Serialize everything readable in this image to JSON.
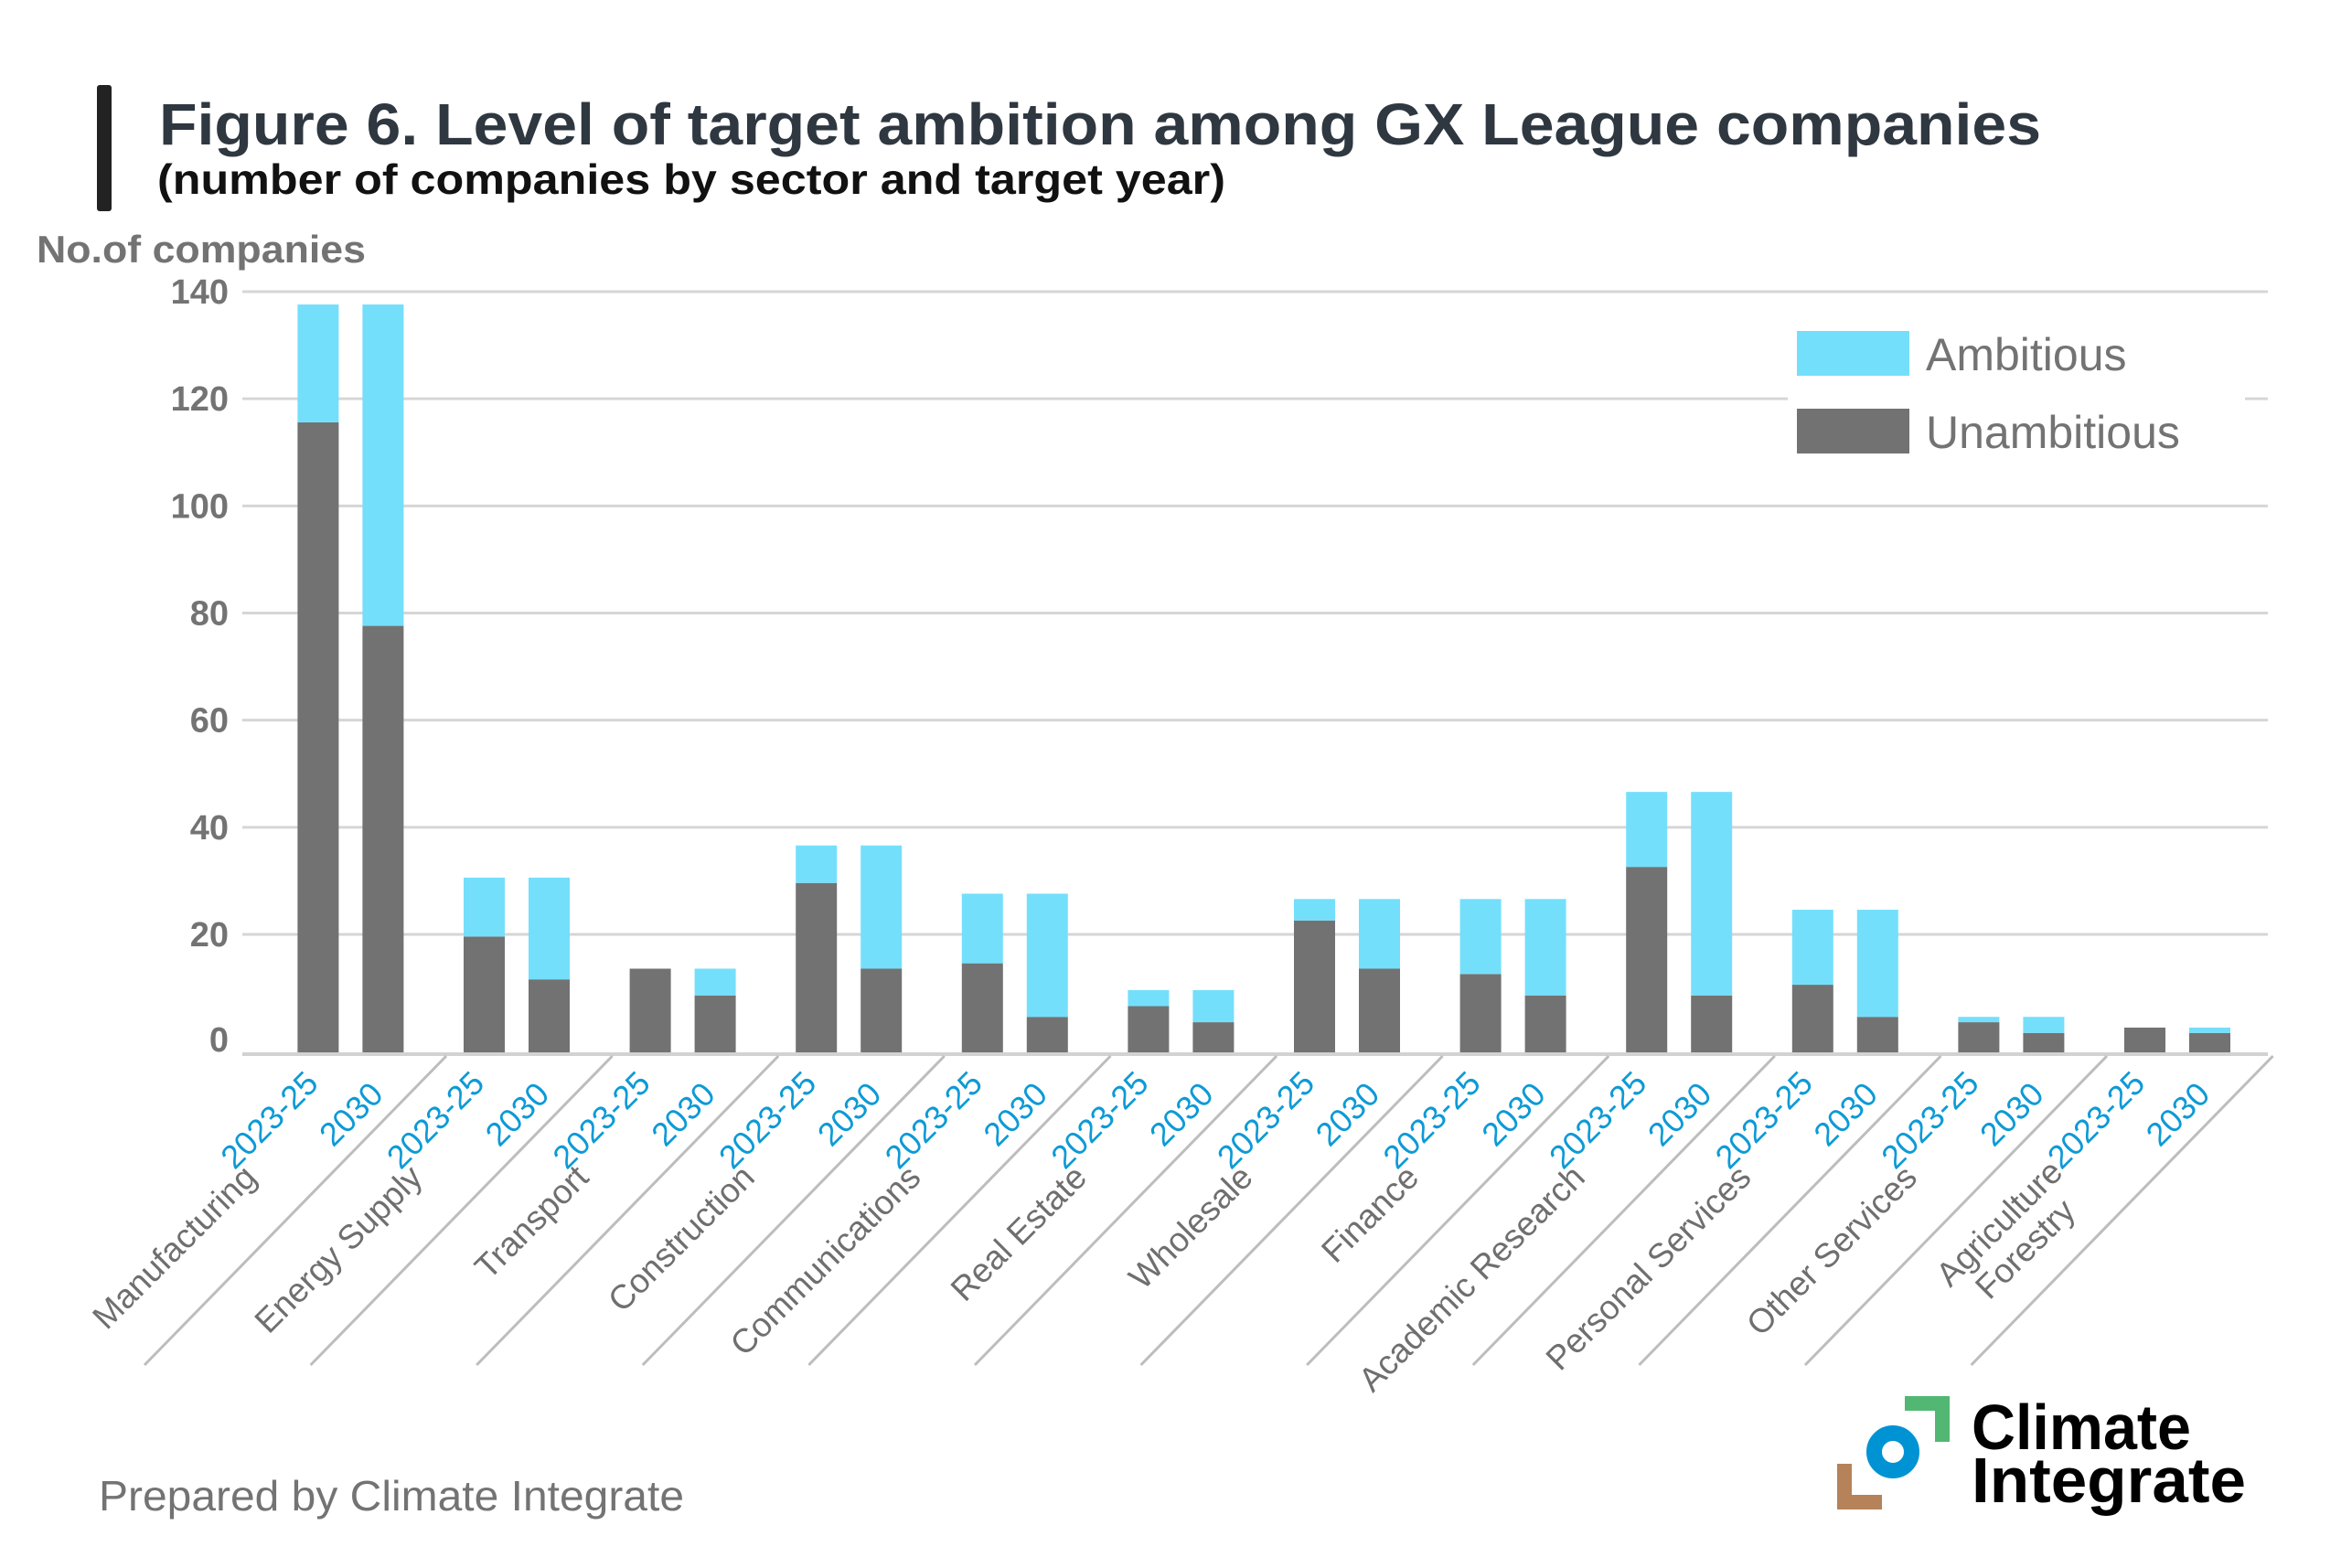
{
  "header": {
    "title": "Figure 6. Level of target ambition among GX League companies",
    "subtitle": "(number of companies by sector and target year)"
  },
  "footer": {
    "credit": "Prepared by Climate Integrate"
  },
  "logo": {
    "line1": "Climate",
    "line2": "Integrate",
    "colors": {
      "green": "#52b772",
      "blue": "#0093d3",
      "brown": "#b5825a"
    }
  },
  "colors": {
    "ambitious": "#74dffb",
    "unambitious": "#727272",
    "year_label": "#0d9ad6",
    "title_bar": "#222222"
  },
  "chart_data": {
    "type": "bar",
    "stacked": true,
    "title": "Figure 6. Level of target ambition among GX League companies",
    "subtitle": "(number of companies by sector and target year)",
    "xlabel": "",
    "ylabel": "No.of companies",
    "ylim": [
      0,
      140
    ],
    "yticks": [
      "0",
      "20",
      "40",
      "60",
      "80",
      "100",
      "120",
      "140"
    ],
    "grid": true,
    "legend": {
      "placement": "top-right",
      "entries": [
        "Ambitious",
        "Unambitious"
      ]
    },
    "sectors": [
      {
        "name": "Manufacturing",
        "lines": [
          "Manufacturing"
        ]
      },
      {
        "name": "Energy Supply",
        "lines": [
          "Energy Supply"
        ]
      },
      {
        "name": "Transport",
        "lines": [
          "Transport"
        ]
      },
      {
        "name": "Construction",
        "lines": [
          "Construction"
        ]
      },
      {
        "name": "Communications",
        "lines": [
          "Communications"
        ]
      },
      {
        "name": "Real Estate",
        "lines": [
          "Real Estate"
        ]
      },
      {
        "name": "Wholesale",
        "lines": [
          "Wholesale"
        ]
      },
      {
        "name": "Finance",
        "lines": [
          "Finance"
        ]
      },
      {
        "name": "Academic Research",
        "lines": [
          "Academic Research"
        ]
      },
      {
        "name": "Personal Services",
        "lines": [
          "Personal Services"
        ]
      },
      {
        "name": "Other Services",
        "lines": [
          "Other Services"
        ]
      },
      {
        "name": "Agriculture Forestry",
        "lines": [
          "Agriculture",
          "Forestry"
        ]
      }
    ],
    "target_years": [
      "2023-25",
      "2030"
    ],
    "series": [
      {
        "name": "Unambitious",
        "values": {
          "2023-25": [
            116,
            20,
            14,
            30,
            15,
            7,
            23,
            13,
            33,
            11,
            4,
            3
          ],
          "2030": [
            78,
            12,
            9,
            14,
            5,
            4,
            14,
            9,
            9,
            5,
            2,
            2
          ]
        }
      },
      {
        "name": "Ambitious",
        "values": {
          "2023-25": [
            22,
            11,
            0,
            7,
            13,
            3,
            4,
            14,
            14,
            14,
            1,
            0
          ],
          "2030": [
            60,
            19,
            5,
            23,
            23,
            6,
            13,
            18,
            38,
            20,
            3,
            1
          ]
        }
      }
    ]
  }
}
